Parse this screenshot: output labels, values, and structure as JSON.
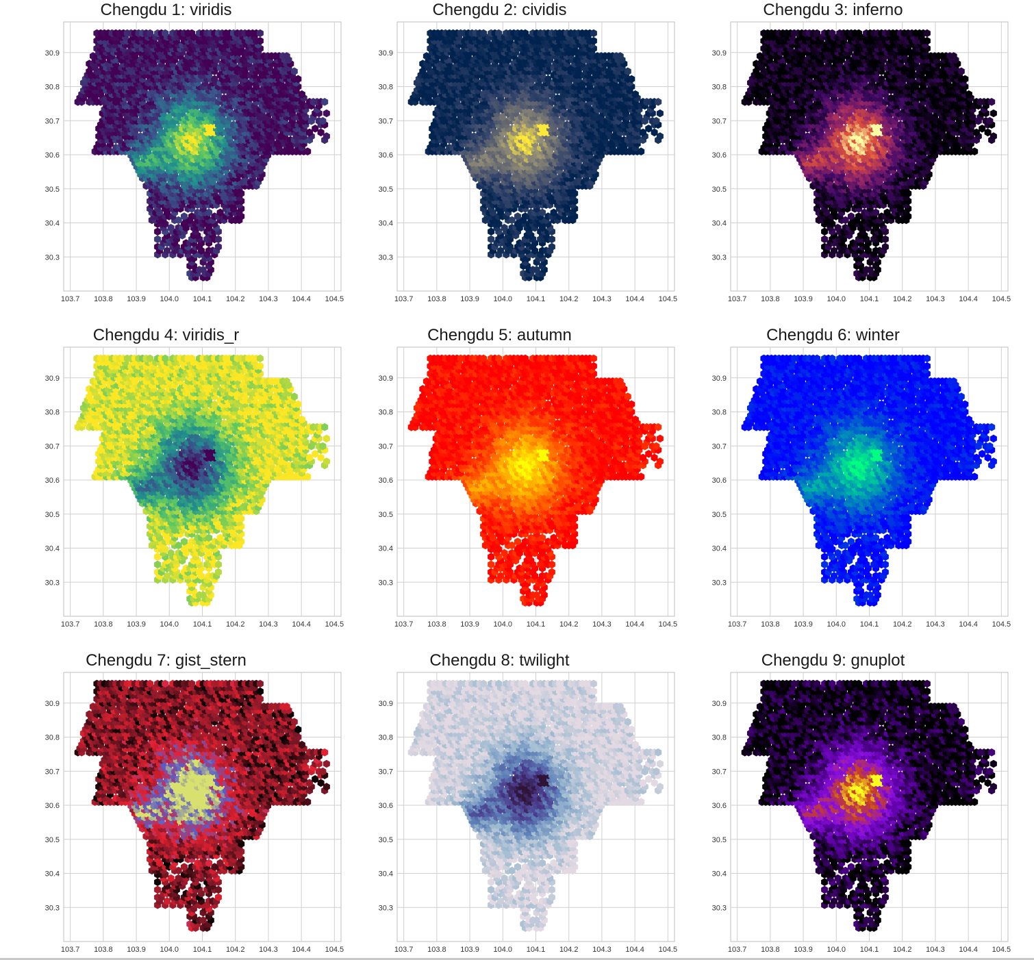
{
  "chart_data": [
    {
      "type": "hexbin",
      "title": "Chengdu 1: viridis",
      "colormap": "viridis",
      "colors": [
        "#440154",
        "#3b528b",
        "#21908d",
        "#5dc863",
        "#fde725"
      ]
    },
    {
      "type": "hexbin",
      "title": "Chengdu 2: cividis",
      "colormap": "cividis",
      "colors": [
        "#00224e",
        "#35456c",
        "#666970",
        "#948e77",
        "#fee838"
      ]
    },
    {
      "type": "hexbin",
      "title": "Chengdu 3: inferno",
      "colormap": "inferno",
      "colors": [
        "#000004",
        "#420a68",
        "#932667",
        "#dd513a",
        "#fcffa4"
      ]
    },
    {
      "type": "hexbin",
      "title": "Chengdu 4: viridis_r",
      "colormap": "viridis_r",
      "colors": [
        "#fde725",
        "#5dc863",
        "#21908d",
        "#3b528b",
        "#440154"
      ]
    },
    {
      "type": "hexbin",
      "title": "Chengdu 5: autumn",
      "colormap": "autumn",
      "colors": [
        "#ff0000",
        "#ff4000",
        "#ff8000",
        "#ffbf00",
        "#ffff00"
      ]
    },
    {
      "type": "hexbin",
      "title": "Chengdu 6: winter",
      "colormap": "winter",
      "colors": [
        "#0000ff",
        "#0040df",
        "#0080bf",
        "#00bf9f",
        "#00ff80"
      ]
    },
    {
      "type": "hexbin",
      "title": "Chengdu 7: gist_stern",
      "colormap": "gist_stern",
      "colors": [
        "#000000",
        "#8b1a2a",
        "#e8202f",
        "#5a5cc8",
        "#d8e070"
      ]
    },
    {
      "type": "hexbin",
      "title": "Chengdu 8: twilight",
      "colormap": "twilight",
      "colors": [
        "#e2d9e2",
        "#9dbad0",
        "#5e80b8",
        "#4a3a8c",
        "#2f1436"
      ]
    },
    {
      "type": "hexbin",
      "title": "Chengdu 9: gnuplot",
      "colormap": "gnuplot",
      "colors": [
        "#000000",
        "#5a00a0",
        "#8a10e0",
        "#c84020",
        "#ffff20"
      ]
    }
  ],
  "axes": {
    "xlim": [
      103.68,
      104.52
    ],
    "ylim": [
      30.2,
      30.99
    ],
    "xticks": [
      "103.7",
      "103.8",
      "103.9",
      "104.0",
      "104.1",
      "104.2",
      "104.3",
      "104.4",
      "104.5"
    ],
    "yticks": [
      "30.9",
      "30.8",
      "30.7",
      "30.6",
      "30.5",
      "30.4",
      "30.3"
    ],
    "grid": true
  },
  "colors": {
    "grid": "#cfcfcf",
    "frame": "#bdbdbd"
  }
}
